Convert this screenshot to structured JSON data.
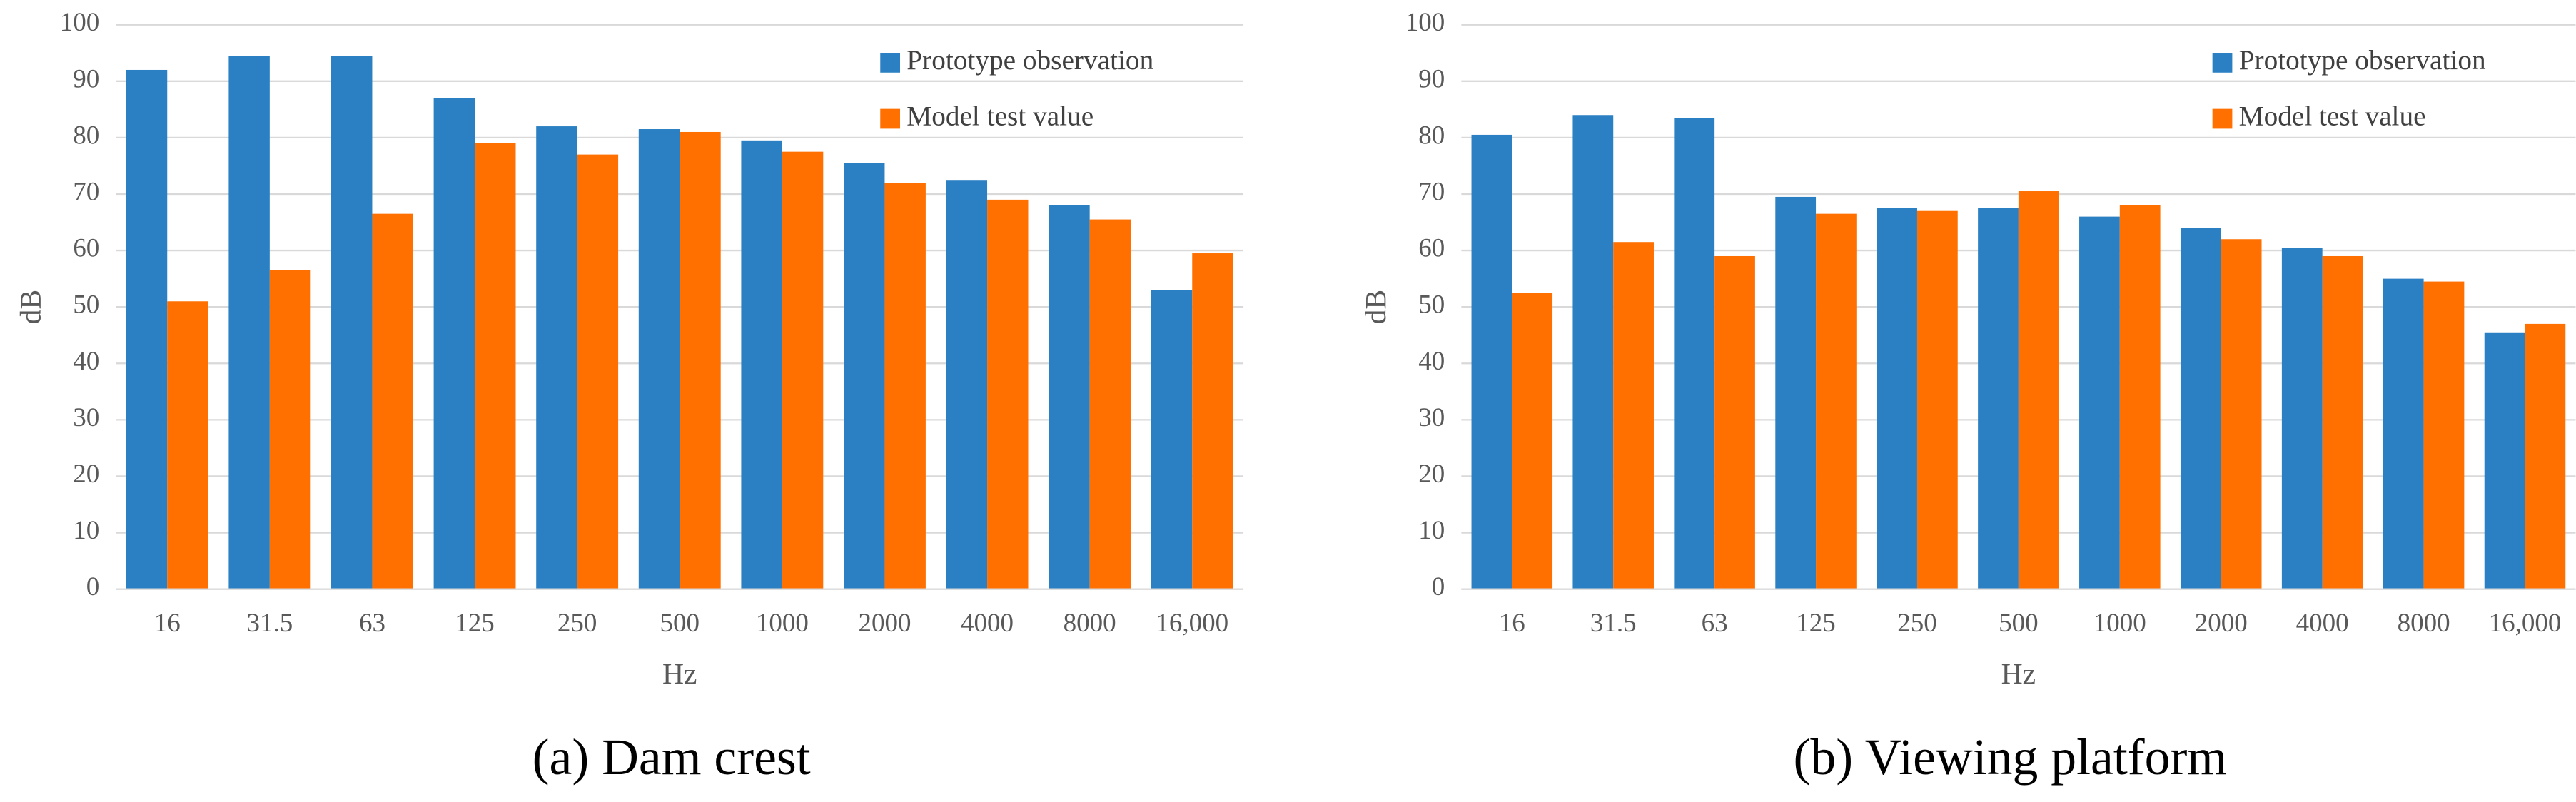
{
  "chart_data": [
    {
      "type": "bar",
      "caption": "(a) Dam crest",
      "x_label": "Hz",
      "y_label": "dB",
      "categories": [
        "16",
        "31.5",
        "63",
        "125",
        "250",
        "500",
        "1000",
        "2000",
        "4000",
        "8000",
        "16,000"
      ],
      "series": [
        {
          "name": "Prototype observation",
          "color": "#2b80c3",
          "values": [
            92,
            94.5,
            94.5,
            87,
            82,
            81.5,
            79.5,
            75.5,
            72.5,
            68,
            53
          ]
        },
        {
          "name": "Model test value",
          "color": "#ff7000",
          "values": [
            51,
            56.5,
            66.5,
            79,
            77,
            81,
            77.5,
            72,
            69,
            65.5,
            59.5
          ]
        }
      ],
      "ylim": [
        0,
        100
      ],
      "yticks": [
        0,
        10,
        20,
        30,
        40,
        50,
        60,
        70,
        80,
        90,
        100
      ],
      "grid": true,
      "legend": "upper right"
    },
    {
      "type": "bar",
      "caption": "(b) Viewing platform",
      "x_label": "Hz",
      "y_label": "dB",
      "categories": [
        "16",
        "31.5",
        "63",
        "125",
        "250",
        "500",
        "1000",
        "2000",
        "4000",
        "8000",
        "16,000"
      ],
      "series": [
        {
          "name": "Prototype observation",
          "color": "#2b80c3",
          "values": [
            80.5,
            84,
            83.5,
            69.5,
            67.5,
            67.5,
            66,
            64,
            60.5,
            55,
            45.5
          ]
        },
        {
          "name": "Model test value",
          "color": "#ff7000",
          "values": [
            52.5,
            61.5,
            59,
            66.5,
            67,
            70.5,
            68,
            62,
            59,
            54.5,
            47
          ]
        }
      ],
      "ylim": [
        0,
        100
      ],
      "yticks": [
        0,
        10,
        20,
        30,
        40,
        50,
        60,
        70,
        80,
        90,
        100
      ],
      "grid": true,
      "legend": "upper right"
    }
  ]
}
